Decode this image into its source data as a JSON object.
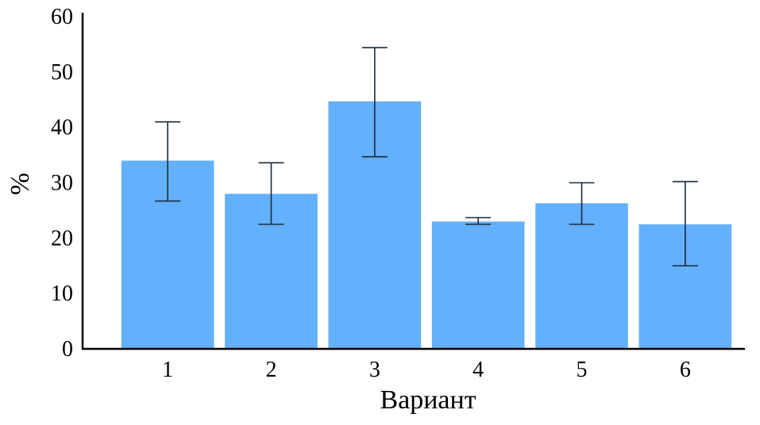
{
  "chart_data": {
    "type": "bar",
    "categories": [
      "1",
      "2",
      "3",
      "4",
      "5",
      "6"
    ],
    "values": [
      34,
      28,
      44.7,
      23,
      26.3,
      22.5
    ],
    "error_bars": {
      "lower": [
        26.7,
        22.5,
        34.7,
        22.5,
        22.5,
        15
      ],
      "upper": [
        41,
        33.6,
        54.4,
        23.7,
        30,
        30.2
      ]
    },
    "ylim": [
      0,
      60
    ],
    "yticks": [
      "0",
      "10",
      "20",
      "30",
      "40",
      "50",
      "60"
    ],
    "xlabel": "Вариант",
    "ylabel": "%",
    "title": "",
    "grid": false,
    "colors": {
      "bar": "#63b0fc",
      "error": "#1b2a3a"
    }
  }
}
